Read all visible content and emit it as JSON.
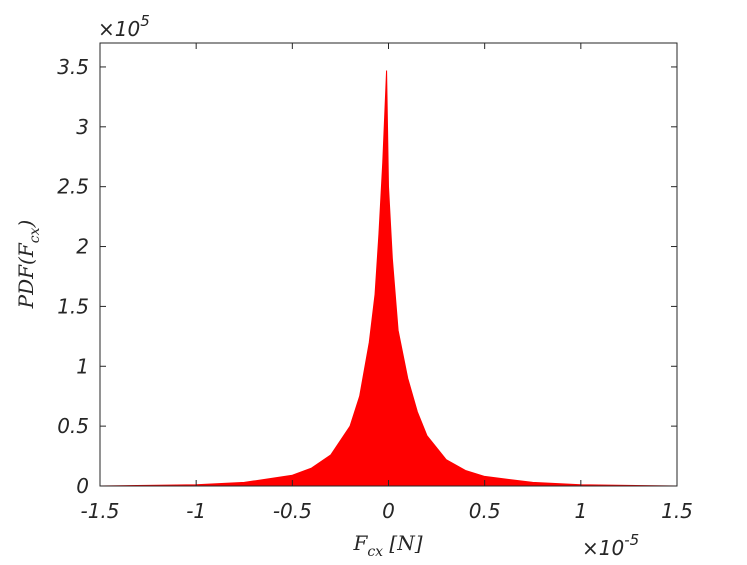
{
  "chart_data": {
    "type": "area",
    "color": "#ff0000",
    "xlabel": {
      "main": "F",
      "sub": "cx",
      "end": " [N]"
    },
    "ylabel": {
      "main": "PDF(F",
      "sub": "cx",
      "end": ")"
    },
    "x_multiplier": {
      "base": "×10",
      "exponent": "-5"
    },
    "y_multiplier": {
      "base": "×10",
      "exponent": "5"
    },
    "xlim": [
      -1.5,
      1.5
    ],
    "ylim": [
      0,
      3.7
    ],
    "xticks": [
      -1.5,
      -1,
      -0.5,
      0,
      0.5,
      1,
      1.5
    ],
    "yticks": [
      0,
      0.5,
      1,
      1.5,
      2,
      2.5,
      3,
      3.5
    ],
    "x": [
      -1.5,
      -1.0,
      -0.75,
      -0.5,
      -0.4,
      -0.3,
      -0.2,
      -0.15,
      -0.1,
      -0.07,
      -0.05,
      -0.03,
      -0.01,
      0.0,
      0.02,
      0.05,
      0.1,
      0.15,
      0.2,
      0.3,
      0.4,
      0.5,
      0.75,
      1.0,
      1.5
    ],
    "values": [
      0.0,
      0.01,
      0.03,
      0.09,
      0.15,
      0.26,
      0.5,
      0.75,
      1.2,
      1.6,
      2.1,
      2.7,
      3.47,
      2.5,
      1.9,
      1.3,
      0.9,
      0.62,
      0.42,
      0.22,
      0.13,
      0.08,
      0.03,
      0.01,
      0.0
    ]
  }
}
